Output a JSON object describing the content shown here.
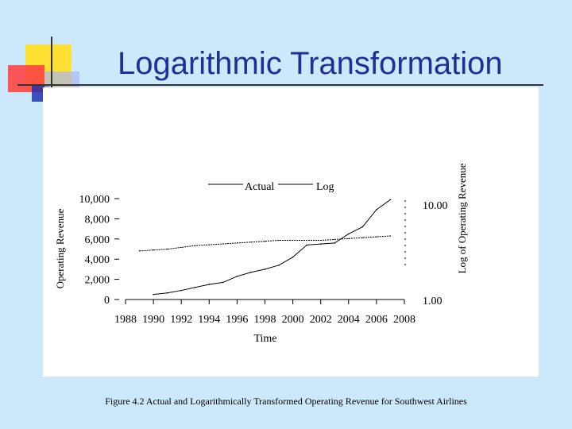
{
  "slide": {
    "title": "Logarithmic Transformation",
    "caption": "Figure 4.2 Actual and Logarithmically Transformed Operating Revenue for Southwest Airlines"
  },
  "colors": {
    "background": "#cce8fb",
    "title": "#1f2f99",
    "deco_yellow": "#ffe033",
    "deco_red": "#ff4444",
    "deco_blue": "#2233aa"
  },
  "chart_data": {
    "type": "line",
    "xlabel": "Time",
    "ylabel_left": "Operating Revenue",
    "ylabel_right": "Log of Operating Revenue",
    "x_tick_labels": [
      "1988",
      "1990",
      "1992",
      "1994",
      "1996",
      "1998",
      "2000",
      "2002",
      "2004",
      "2006",
      "2008"
    ],
    "y_left_tick_labels": [
      "0",
      "2,000",
      "4,000",
      "6,000",
      "8,000",
      "10,000"
    ],
    "y_right_tick_labels": [
      "1.00",
      "10.00"
    ],
    "legend": [
      "Actual",
      "Log"
    ],
    "legend_position": "top",
    "grid": false,
    "ylim_left": [
      0,
      10000
    ],
    "ylim_right_log10": [
      0,
      1
    ],
    "series": [
      {
        "name": "Actual",
        "axis": "left",
        "x": [
          1990,
          1991,
          1992,
          1993,
          1994,
          1995,
          1996,
          1997,
          1998,
          1999,
          2000,
          2001,
          2002,
          2003,
          2004,
          2005,
          2006,
          2007
        ],
        "values": [
          500,
          650,
          900,
          1200,
          1500,
          1700,
          2300,
          2700,
          3000,
          3400,
          4200,
          5400,
          5500,
          5600,
          6500,
          7200,
          8900,
          9900
        ]
      },
      {
        "name": "Log",
        "axis": "right",
        "x": [
          1989,
          1990,
          1991,
          1992,
          1993,
          1994,
          1995,
          1996,
          1997,
          1998,
          1999,
          2000,
          2001,
          2002,
          2003,
          2004,
          2005,
          2006,
          2007
        ],
        "values": [
          2.75,
          2.8,
          2.85,
          2.95,
          3.05,
          3.1,
          3.15,
          3.2,
          3.25,
          3.3,
          3.35,
          3.35,
          3.35,
          3.35,
          3.4,
          3.45,
          3.5,
          3.55,
          3.6
        ]
      }
    ]
  }
}
